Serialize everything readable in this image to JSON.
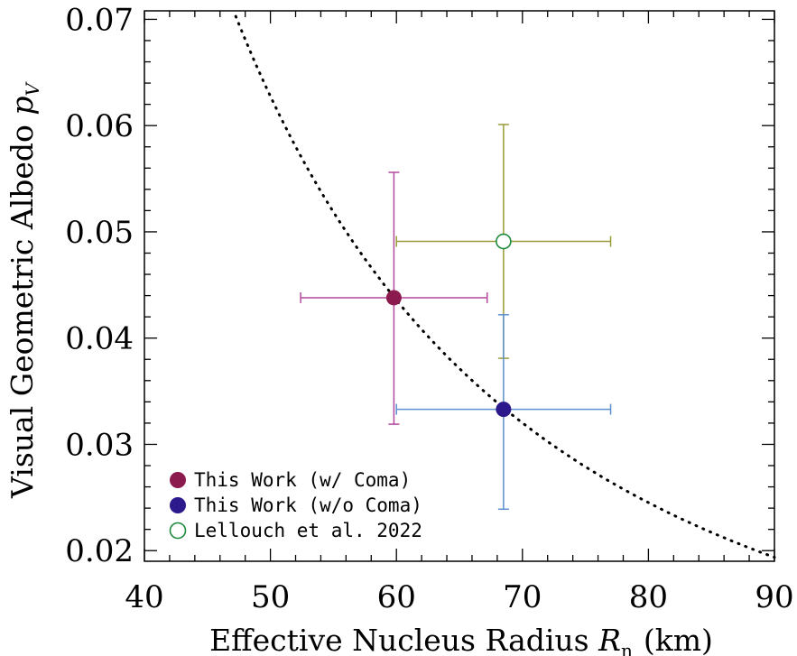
{
  "chart_data": {
    "type": "scatter",
    "xlabel": "Effective Nucleus Radius",
    "xlabel_symbol": "R",
    "xlabel_subscript": "n",
    "xlabel_unit": "(km)",
    "ylabel": "Visual Geometric Albedo",
    "ylabel_symbol": "p",
    "ylabel_subscript": "V",
    "xlim": [
      40,
      90
    ],
    "ylim": [
      0.019,
      0.0708
    ],
    "x_ticks": [
      "40",
      "50",
      "60",
      "70",
      "80",
      "90"
    ],
    "y_ticks": [
      "0.02",
      "0.03",
      "0.04",
      "0.05",
      "0.06",
      "0.07"
    ],
    "grid": false,
    "legend_position": "bottom-left",
    "series": [
      {
        "name": "This Work (w/ Coma)",
        "marker": "filled-circle",
        "marker_color": "#8b1a4f",
        "errorbar_color": "#b4489e",
        "points": [
          {
            "x": 59.8,
            "y": 0.0438,
            "xerr": [
              52.4,
              67.2
            ],
            "yerr": [
              0.0319,
              0.0556
            ]
          }
        ]
      },
      {
        "name": "This Work (w/o Coma)",
        "marker": "filled-circle",
        "marker_color": "#2c1a8c",
        "errorbar_color": "#5b8fcf",
        "points": [
          {
            "x": 68.5,
            "y": 0.0333,
            "xerr": [
              60.0,
              77.0
            ],
            "yerr": [
              0.0239,
              0.0422
            ]
          }
        ]
      },
      {
        "name": "Lellouch et al. 2022",
        "marker": "open-circle",
        "marker_color": "#1e8a3c",
        "errorbar_color": "#9a9a38",
        "points": [
          {
            "x": 68.5,
            "y": 0.0491,
            "xerr": [
              60.0,
              77.0
            ],
            "yerr": [
              0.0381,
              0.0601
            ]
          }
        ]
      }
    ],
    "curve": {
      "style": "dotted",
      "color": "#000000",
      "description_key": "p_V * R_n^2 constant",
      "k": 156.9
    }
  }
}
